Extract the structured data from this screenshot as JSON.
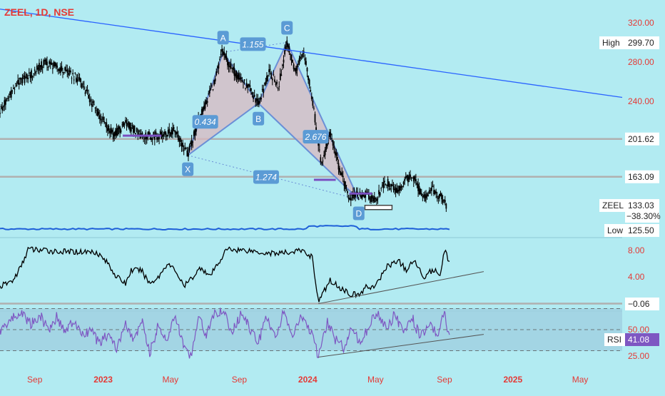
{
  "header": {
    "title": "ZEEL, 1D, NSE"
  },
  "chart_data": [
    {
      "type": "candlestick",
      "pane": "price",
      "symbol": "ZEEL",
      "interval": "1D",
      "exchange": "NSE",
      "y_ticks": [
        320,
        280,
        240
      ],
      "y_tick_labels": [
        "320.00",
        "280.00",
        "240.00"
      ],
      "ylim": [
        118,
        335
      ],
      "x_ticks": [
        {
          "label": "Sep",
          "date": "2022-09-01"
        },
        {
          "label": "2023",
          "date": "2023-01-01"
        },
        {
          "label": "May",
          "date": "2023-05-01"
        },
        {
          "label": "Sep",
          "date": "2023-09-01"
        },
        {
          "label": "2024",
          "date": "2024-01-01"
        },
        {
          "label": "May",
          "date": "2024-05-01"
        },
        {
          "label": "Sep",
          "date": "2024-09-01"
        },
        {
          "label": "2025",
          "date": "2025-01-01"
        },
        {
          "label": "May",
          "date": "2025-05-01"
        }
      ],
      "price_path": [
        [
          "2022-07-01",
          230
        ],
        [
          "2022-08-01",
          258
        ],
        [
          "2022-08-20",
          265
        ],
        [
          "2022-09-20",
          280
        ],
        [
          "2022-10-20",
          272
        ],
        [
          "2022-11-20",
          262
        ],
        [
          "2022-12-20",
          230
        ],
        [
          "2023-01-20",
          205
        ],
        [
          "2023-02-10",
          218
        ],
        [
          "2023-03-10",
          205
        ],
        [
          "2023-04-10",
          205
        ],
        [
          "2023-05-10",
          210
        ],
        [
          "2023-06-01",
          185
        ],
        [
          "2023-06-20",
          220
        ],
        [
          "2023-07-20",
          262
        ],
        [
          "2023-08-01",
          290
        ],
        [
          "2023-08-20",
          272
        ],
        [
          "2023-09-20",
          252
        ],
        [
          "2023-10-05",
          238
        ],
        [
          "2023-10-25",
          270
        ],
        [
          "2023-11-10",
          255
        ],
        [
          "2023-11-25",
          300
        ],
        [
          "2023-12-10",
          270
        ],
        [
          "2023-12-25",
          292
        ],
        [
          "2024-01-10",
          240
        ],
        [
          "2024-01-25",
          175
        ],
        [
          "2024-02-10",
          208
        ],
        [
          "2024-02-25",
          175
        ],
        [
          "2024-03-15",
          142
        ],
        [
          "2024-04-10",
          145
        ],
        [
          "2024-05-01",
          140
        ],
        [
          "2024-05-20",
          158
        ],
        [
          "2024-06-10",
          148
        ],
        [
          "2024-06-25",
          162
        ],
        [
          "2024-07-10",
          160
        ],
        [
          "2024-07-25",
          140
        ],
        [
          "2024-08-10",
          150
        ],
        [
          "2024-08-25",
          143
        ],
        [
          "2024-09-05",
          133
        ]
      ],
      "horizontal_levels": [
        {
          "value": 201.62,
          "label": "201.62"
        },
        {
          "value": 163.09,
          "label": "163.09"
        }
      ],
      "price_tags": [
        {
          "name": "High",
          "value": 299.7,
          "label": "299.70"
        },
        {
          "name": "ZEEL",
          "value": 133.03,
          "label": "133.03",
          "change": "−38.30%"
        },
        {
          "name": "Low",
          "value": 125.5,
          "label": "125.50"
        }
      ],
      "trendline": {
        "start": [
          "2022-07-01",
          334
        ],
        "end": [
          "2025-07-15",
          244
        ]
      },
      "harmonic_pattern": {
        "points": [
          {
            "label": "X",
            "date": "2023-06-01",
            "value": 185
          },
          {
            "label": "A",
            "date": "2023-08-03",
            "value": 290
          },
          {
            "label": "B",
            "date": "2023-10-05",
            "value": 238
          },
          {
            "label": "C",
            "date": "2023-11-25",
            "value": 300
          },
          {
            "label": "D",
            "date": "2024-04-01",
            "value": 140
          }
        ],
        "ratios": [
          "1.155",
          "0.434",
          "2.676",
          "1.274"
        ]
      }
    },
    {
      "type": "line",
      "pane": "indicator",
      "y_ticks": [
        8,
        4,
        -0.06
      ],
      "y_tick_labels": [
        "8.00",
        "4.00",
        "−0.06"
      ],
      "ylim": [
        -0.5,
        9.2
      ],
      "series_path": [
        [
          "2022-07-01",
          2.5
        ],
        [
          "2022-07-25",
          3.5
        ],
        [
          "2022-08-10",
          6
        ],
        [
          "2022-08-20",
          8.2
        ],
        [
          "2022-09-20",
          8
        ],
        [
          "2022-10-20",
          7.8
        ],
        [
          "2022-11-20",
          7.8
        ],
        [
          "2022-12-20",
          7.8
        ],
        [
          "2023-01-10",
          6
        ],
        [
          "2023-01-25",
          4
        ],
        [
          "2023-02-10",
          3
        ],
        [
          "2023-02-20",
          5
        ],
        [
          "2023-03-10",
          5
        ],
        [
          "2023-03-25",
          3
        ],
        [
          "2023-04-10",
          4
        ],
        [
          "2023-04-25",
          6
        ],
        [
          "2023-05-10",
          5
        ],
        [
          "2023-05-25",
          2.5
        ],
        [
          "2023-06-10",
          4
        ],
        [
          "2023-06-25",
          5.5
        ],
        [
          "2023-07-10",
          4
        ],
        [
          "2023-07-25",
          6
        ],
        [
          "2023-08-10",
          8.2
        ],
        [
          "2023-09-20",
          8
        ],
        [
          "2023-10-20",
          7.6
        ],
        [
          "2023-11-20",
          7.6
        ],
        [
          "2023-12-20",
          8
        ],
        [
          "2024-01-10",
          7
        ],
        [
          "2024-01-15",
          3
        ],
        [
          "2024-01-20",
          0.2
        ],
        [
          "2024-02-10",
          3.5
        ],
        [
          "2024-02-25",
          2.5
        ],
        [
          "2024-03-15",
          1.5
        ],
        [
          "2024-04-01",
          1.2
        ],
        [
          "2024-04-15",
          2.5
        ],
        [
          "2024-05-01",
          2.5
        ],
        [
          "2024-05-20",
          5.5
        ],
        [
          "2024-06-10",
          6.5
        ],
        [
          "2024-06-25",
          5
        ],
        [
          "2024-07-10",
          6.5
        ],
        [
          "2024-07-25",
          4
        ],
        [
          "2024-08-10",
          5
        ],
        [
          "2024-08-25",
          4.5
        ],
        [
          "2024-09-01",
          8.2
        ],
        [
          "2024-09-10",
          6.2
        ]
      ],
      "trendline": {
        "start": [
          "2024-01-20",
          -0.06
        ],
        "end": [
          "2024-11-10",
          4.8
        ]
      },
      "horizontal_levels": [
        {
          "value": -0.06
        }
      ]
    },
    {
      "type": "line",
      "pane": "rsi",
      "legend": "RSI",
      "value": 41.08,
      "value_label": "41.08",
      "y_ticks": [
        50,
        25
      ],
      "y_tick_labels": [
        "50.00",
        "25.00"
      ],
      "band": [
        30,
        70
      ],
      "ylim": [
        20,
        75
      ],
      "rsi_path": [
        [
          "2022-07-01",
          48
        ],
        [
          "2022-07-20",
          60
        ],
        [
          "2022-08-10",
          66
        ],
        [
          "2022-08-25",
          55
        ],
        [
          "2022-09-10",
          64
        ],
        [
          "2022-09-25",
          50
        ],
        [
          "2022-10-10",
          62
        ],
        [
          "2022-10-25",
          48
        ],
        [
          "2022-11-10",
          58
        ],
        [
          "2022-11-25",
          44
        ],
        [
          "2022-12-10",
          50
        ],
        [
          "2022-12-25",
          36
        ],
        [
          "2023-01-10",
          46
        ],
        [
          "2023-01-25",
          32
        ],
        [
          "2023-02-10",
          55
        ],
        [
          "2023-02-25",
          38
        ],
        [
          "2023-03-10",
          60
        ],
        [
          "2023-03-25",
          28
        ],
        [
          "2023-04-10",
          55
        ],
        [
          "2023-04-25",
          40
        ],
        [
          "2023-05-10",
          63
        ],
        [
          "2023-05-25",
          34
        ],
        [
          "2023-06-05",
          22
        ],
        [
          "2023-06-20",
          62
        ],
        [
          "2023-07-05",
          45
        ],
        [
          "2023-07-20",
          68
        ],
        [
          "2023-08-05",
          64
        ],
        [
          "2023-08-20",
          48
        ],
        [
          "2023-09-05",
          66
        ],
        [
          "2023-09-20",
          50
        ],
        [
          "2023-10-05",
          38
        ],
        [
          "2023-10-20",
          62
        ],
        [
          "2023-11-05",
          44
        ],
        [
          "2023-11-20",
          68
        ],
        [
          "2023-12-05",
          42
        ],
        [
          "2023-12-20",
          62
        ],
        [
          "2024-01-05",
          50
        ],
        [
          "2024-01-20",
          24
        ],
        [
          "2024-02-05",
          58
        ],
        [
          "2024-02-20",
          40
        ],
        [
          "2024-03-05",
          33
        ],
        [
          "2024-03-20",
          52
        ],
        [
          "2024-04-05",
          36
        ],
        [
          "2024-04-20",
          56
        ],
        [
          "2024-05-05",
          66
        ],
        [
          "2024-05-20",
          50
        ],
        [
          "2024-06-05",
          65
        ],
        [
          "2024-06-20",
          45
        ],
        [
          "2024-07-05",
          62
        ],
        [
          "2024-07-20",
          42
        ],
        [
          "2024-08-05",
          56
        ],
        [
          "2024-08-20",
          44
        ],
        [
          "2024-09-01",
          68
        ],
        [
          "2024-09-10",
          41
        ]
      ],
      "trendline": {
        "start": [
          "2024-01-20",
          24
        ],
        "end": [
          "2024-11-10",
          45.5
        ]
      }
    }
  ],
  "colors": {
    "background": "#b2ebf2",
    "axis_text": "#e53935",
    "candle": "#000000",
    "trendline": "#2962ff",
    "level_line": "#b0b0b0",
    "pattern_fill": "#d9b8c0",
    "pattern_stroke": "#6b8fd6",
    "point_label_bg": "#5b9bd5",
    "indicator_line": "#000000",
    "rsi_line": "#7e57c2",
    "rsi_band": "#9fcfe0",
    "volume_line": "#1e5fd8",
    "tag_white": "#ffffff",
    "tag_rsi": "#7e57c2"
  }
}
